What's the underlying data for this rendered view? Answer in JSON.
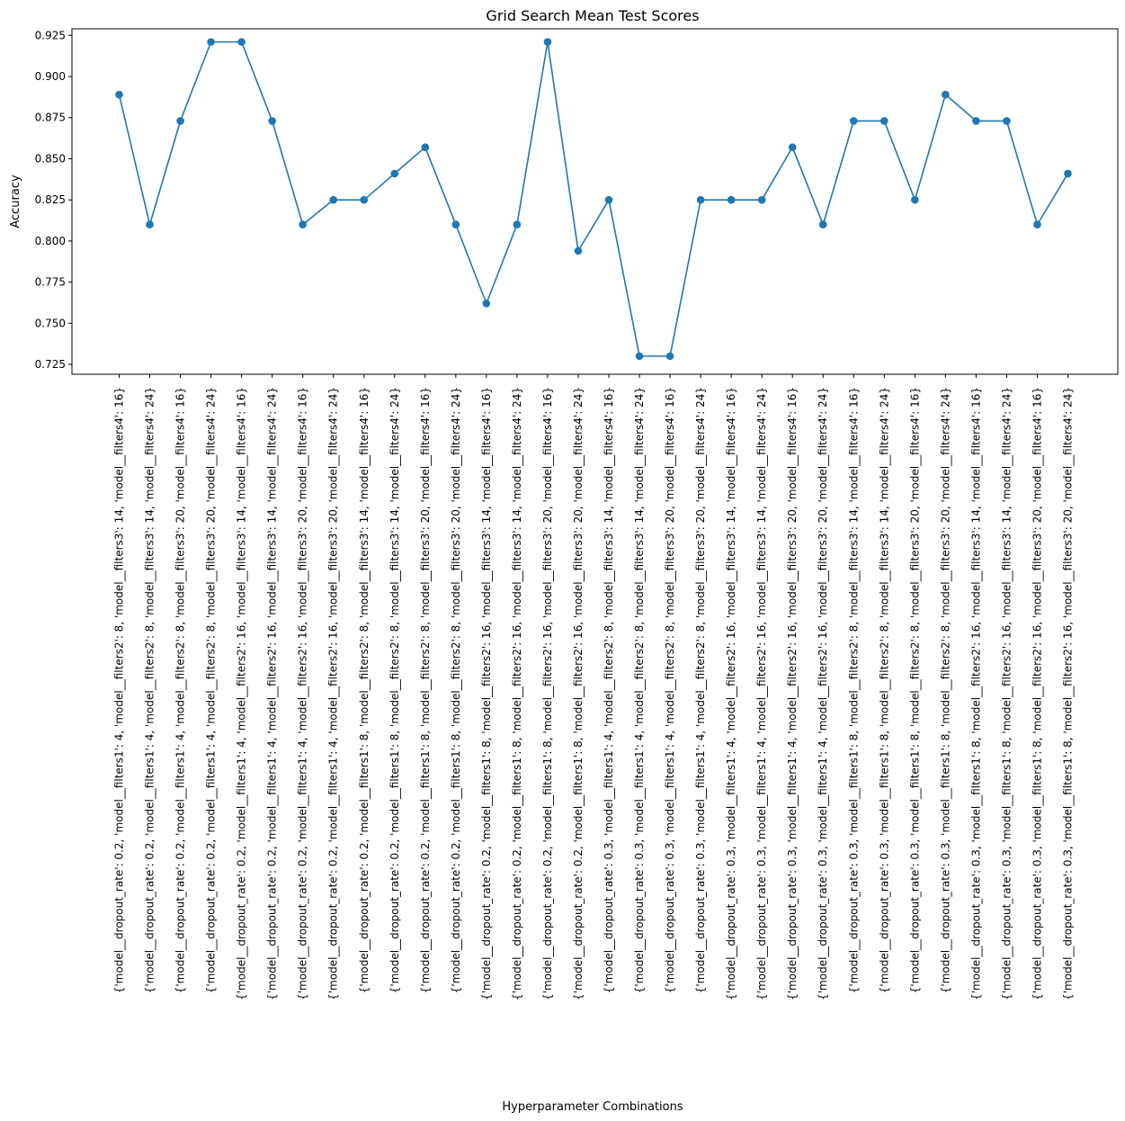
{
  "chart_data": {
    "type": "line",
    "title": "Grid Search Mean Test Scores",
    "xlabel": "Hyperparameter Combinations",
    "ylabel": "Accuracy",
    "ylim": [
      0.719,
      0.929
    ],
    "yticks": [
      "0.725",
      "0.750",
      "0.775",
      "0.800",
      "0.825",
      "0.850",
      "0.875",
      "0.900",
      "0.925"
    ],
    "color": "#1f77b4",
    "marker": "circle",
    "grid": false,
    "categories": [
      "{'model__dropout_rate': 0.2, 'model__filters1': 4, 'model__filters2': 8, 'model__filters3': 14, 'model__filters4': 16}",
      "{'model__dropout_rate': 0.2, 'model__filters1': 4, 'model__filters2': 8, 'model__filters3': 14, 'model__filters4': 24}",
      "{'model__dropout_rate': 0.2, 'model__filters1': 4, 'model__filters2': 8, 'model__filters3': 20, 'model__filters4': 16}",
      "{'model__dropout_rate': 0.2, 'model__filters1': 4, 'model__filters2': 8, 'model__filters3': 20, 'model__filters4': 24}",
      "{'model__dropout_rate': 0.2, 'model__filters1': 4, 'model__filters2': 16, 'model__filters3': 14, 'model__filters4': 16}",
      "{'model__dropout_rate': 0.2, 'model__filters1': 4, 'model__filters2': 16, 'model__filters3': 14, 'model__filters4': 24}",
      "{'model__dropout_rate': 0.2, 'model__filters1': 4, 'model__filters2': 16, 'model__filters3': 20, 'model__filters4': 16}",
      "{'model__dropout_rate': 0.2, 'model__filters1': 4, 'model__filters2': 16, 'model__filters3': 20, 'model__filters4': 24}",
      "{'model__dropout_rate': 0.2, 'model__filters1': 8, 'model__filters2': 8, 'model__filters3': 14, 'model__filters4': 16}",
      "{'model__dropout_rate': 0.2, 'model__filters1': 8, 'model__filters2': 8, 'model__filters3': 14, 'model__filters4': 24}",
      "{'model__dropout_rate': 0.2, 'model__filters1': 8, 'model__filters2': 8, 'model__filters3': 20, 'model__filters4': 16}",
      "{'model__dropout_rate': 0.2, 'model__filters1': 8, 'model__filters2': 8, 'model__filters3': 20, 'model__filters4': 24}",
      "{'model__dropout_rate': 0.2, 'model__filters1': 8, 'model__filters2': 16, 'model__filters3': 14, 'model__filters4': 16}",
      "{'model__dropout_rate': 0.2, 'model__filters1': 8, 'model__filters2': 16, 'model__filters3': 14, 'model__filters4': 24}",
      "{'model__dropout_rate': 0.2, 'model__filters1': 8, 'model__filters2': 16, 'model__filters3': 20, 'model__filters4': 16}",
      "{'model__dropout_rate': 0.2, 'model__filters1': 8, 'model__filters2': 16, 'model__filters3': 20, 'model__filters4': 24}",
      "{'model__dropout_rate': 0.3, 'model__filters1': 4, 'model__filters2': 8, 'model__filters3': 14, 'model__filters4': 16}",
      "{'model__dropout_rate': 0.3, 'model__filters1': 4, 'model__filters2': 8, 'model__filters3': 14, 'model__filters4': 24}",
      "{'model__dropout_rate': 0.3, 'model__filters1': 4, 'model__filters2': 8, 'model__filters3': 20, 'model__filters4': 16}",
      "{'model__dropout_rate': 0.3, 'model__filters1': 4, 'model__filters2': 8, 'model__filters3': 20, 'model__filters4': 24}",
      "{'model__dropout_rate': 0.3, 'model__filters1': 4, 'model__filters2': 16, 'model__filters3': 14, 'model__filters4': 16}",
      "{'model__dropout_rate': 0.3, 'model__filters1': 4, 'model__filters2': 16, 'model__filters3': 14, 'model__filters4': 24}",
      "{'model__dropout_rate': 0.3, 'model__filters1': 4, 'model__filters2': 16, 'model__filters3': 20, 'model__filters4': 16}",
      "{'model__dropout_rate': 0.3, 'model__filters1': 4, 'model__filters2': 16, 'model__filters3': 20, 'model__filters4': 24}",
      "{'model__dropout_rate': 0.3, 'model__filters1': 8, 'model__filters2': 8, 'model__filters3': 14, 'model__filters4': 16}",
      "{'model__dropout_rate': 0.3, 'model__filters1': 8, 'model__filters2': 8, 'model__filters3': 14, 'model__filters4': 24}",
      "{'model__dropout_rate': 0.3, 'model__filters1': 8, 'model__filters2': 8, 'model__filters3': 20, 'model__filters4': 16}",
      "{'model__dropout_rate': 0.3, 'model__filters1': 8, 'model__filters2': 8, 'model__filters3': 20, 'model__filters4': 24}",
      "{'model__dropout_rate': 0.3, 'model__filters1': 8, 'model__filters2': 16, 'model__filters3': 14, 'model__filters4': 16}",
      "{'model__dropout_rate': 0.3, 'model__filters1': 8, 'model__filters2': 16, 'model__filters3': 14, 'model__filters4': 24}",
      "{'model__dropout_rate': 0.3, 'model__filters1': 8, 'model__filters2': 16, 'model__filters3': 20, 'model__filters4': 16}",
      "{'model__dropout_rate': 0.3, 'model__filters1': 8, 'model__filters2': 16, 'model__filters3': 20, 'model__filters4': 24}"
    ],
    "values": [
      0.889,
      0.81,
      0.873,
      0.921,
      0.921,
      0.873,
      0.81,
      0.825,
      0.825,
      0.841,
      0.857,
      0.81,
      0.762,
      0.81,
      0.921,
      0.794,
      0.825,
      0.73,
      0.73,
      0.825,
      0.825,
      0.825,
      0.857,
      0.81,
      0.873,
      0.873,
      0.825,
      0.889,
      0.873,
      0.873,
      0.81,
      0.841
    ]
  }
}
